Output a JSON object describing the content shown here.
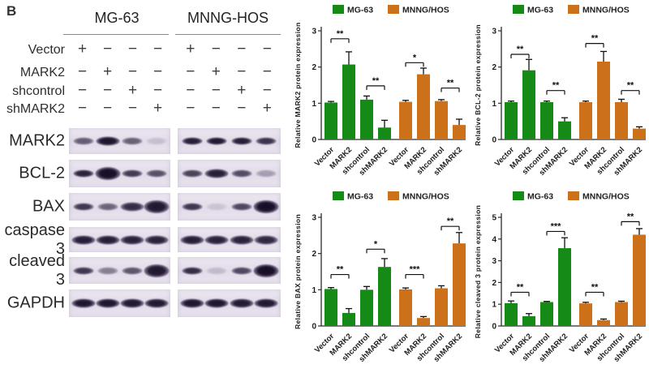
{
  "panel_label": "B",
  "colors": {
    "mg63_green": "#168a16",
    "mnng_orange": "#cd701a",
    "band_dark": "#1d1330",
    "strip_bg": "#e6e0ec",
    "axis": "#2b2b2b"
  },
  "blot_panel": {
    "groups": [
      "MG-63",
      "MNNG-HOS"
    ],
    "conditions": [
      {
        "label": "Vector",
        "mg63": [
          "+",
          "−",
          "−",
          "−"
        ],
        "mnng": [
          "+",
          "−",
          "−",
          "−"
        ]
      },
      {
        "label": "MARK2",
        "mg63": [
          "−",
          "+",
          "−",
          "−"
        ],
        "mnng": [
          "−",
          "+",
          "−",
          "−"
        ]
      },
      {
        "label": "shcontrol",
        "mg63": [
          "−",
          "−",
          "+",
          "−"
        ],
        "mnng": [
          "−",
          "−",
          "+",
          "−"
        ]
      },
      {
        "label": "shMARK2",
        "mg63": [
          "−",
          "−",
          "−",
          "+"
        ],
        "mnng": [
          "−",
          "−",
          "−",
          "+"
        ]
      }
    ],
    "rows": [
      {
        "label": "MARK2",
        "mg63": [
          {
            "i": 0.62,
            "s": "m"
          },
          {
            "i": 0.97,
            "s": "l"
          },
          {
            "i": 0.6,
            "s": "m"
          },
          {
            "i": 0.14,
            "s": "m"
          }
        ],
        "mnng": [
          {
            "i": 0.92,
            "s": "m"
          },
          {
            "i": 0.95,
            "s": "m"
          },
          {
            "i": 0.92,
            "s": "m"
          },
          {
            "i": 0.82,
            "s": "m"
          }
        ]
      },
      {
        "label": "BCL-2",
        "mg63": [
          {
            "i": 0.9,
            "s": "m"
          },
          {
            "i": 1.0,
            "s": "xl"
          },
          {
            "i": 0.78,
            "s": "m"
          },
          {
            "i": 0.68,
            "s": "m"
          }
        ],
        "mnng": [
          {
            "i": 0.75,
            "s": "m"
          },
          {
            "i": 0.92,
            "s": "l"
          },
          {
            "i": 0.7,
            "s": "m"
          },
          {
            "i": 0.3,
            "s": "m"
          }
        ]
      },
      {
        "label": "BAX",
        "mg63": [
          {
            "i": 0.8,
            "s": "m"
          },
          {
            "i": 0.58,
            "s": "m"
          },
          {
            "i": 0.85,
            "s": "l"
          },
          {
            "i": 0.95,
            "s": "xl"
          }
        ],
        "mnng": [
          {
            "i": 0.8,
            "s": "m"
          },
          {
            "i": 0.12,
            "s": "m"
          },
          {
            "i": 0.72,
            "s": "m"
          },
          {
            "i": 1.0,
            "s": "xl"
          }
        ]
      },
      {
        "label": "caspase 3",
        "mg63": [
          {
            "i": 0.92,
            "s": "l"
          },
          {
            "i": 0.92,
            "s": "l"
          },
          {
            "i": 0.9,
            "s": "l"
          },
          {
            "i": 0.9,
            "s": "l"
          }
        ],
        "mnng": [
          {
            "i": 0.92,
            "s": "l"
          },
          {
            "i": 0.9,
            "s": "l"
          },
          {
            "i": 0.9,
            "s": "l"
          },
          {
            "i": 0.88,
            "s": "l"
          }
        ]
      },
      {
        "label": "cleaved 3",
        "mg63": [
          {
            "i": 0.8,
            "s": "m"
          },
          {
            "i": 0.45,
            "s": "m"
          },
          {
            "i": 0.65,
            "s": "m"
          },
          {
            "i": 0.95,
            "s": "xl"
          }
        ],
        "mnng": [
          {
            "i": 0.85,
            "s": "m"
          },
          {
            "i": 0.16,
            "s": "m"
          },
          {
            "i": 0.72,
            "s": "m"
          },
          {
            "i": 1.0,
            "s": "xl"
          }
        ]
      },
      {
        "label": "GAPDH",
        "mg63": [
          {
            "i": 0.96,
            "s": "l"
          },
          {
            "i": 0.96,
            "s": "l"
          },
          {
            "i": 0.95,
            "s": "l"
          },
          {
            "i": 0.95,
            "s": "l"
          }
        ],
        "mnng": [
          {
            "i": 0.96,
            "s": "l"
          },
          {
            "i": 0.96,
            "s": "l"
          },
          {
            "i": 0.94,
            "s": "l"
          },
          {
            "i": 0.95,
            "s": "l"
          }
        ]
      }
    ]
  },
  "chart_data": [
    {
      "type": "bar",
      "title": "",
      "ylabel": "Relative MARK2 protein expression",
      "xlabel": "",
      "ylim": [
        0,
        3
      ],
      "yticks": [
        0,
        1,
        2,
        3
      ],
      "grid": false,
      "legend_position": "top",
      "categories": [
        "Vector",
        "MARK2",
        "shcontrol",
        "shMARK2"
      ],
      "legend": [
        {
          "name": "MG-63",
          "color": "#168a16"
        },
        {
          "name": "MNNG/HOS",
          "color": "#cd701a"
        }
      ],
      "series": [
        {
          "name": "MG-63",
          "color": "#168a16",
          "values": [
            1.02,
            2.07,
            1.1,
            0.33
          ],
          "errors": [
            0.03,
            0.35,
            0.1,
            0.2
          ]
        },
        {
          "name": "MNNG/HOS",
          "color": "#cd701a",
          "values": [
            1.04,
            1.8,
            1.06,
            0.4
          ],
          "errors": [
            0.04,
            0.17,
            0.04,
            0.16
          ]
        }
      ],
      "significance": [
        {
          "series": 0,
          "bars": [
            0,
            1
          ],
          "stars": "**",
          "y": 2.78
        },
        {
          "series": 0,
          "bars": [
            2,
            3
          ],
          "stars": "**",
          "y": 1.48
        },
        {
          "series": 1,
          "bars": [
            0,
            1
          ],
          "stars": "*",
          "y": 2.12
        },
        {
          "series": 1,
          "bars": [
            2,
            3
          ],
          "stars": "**",
          "y": 1.42
        }
      ]
    },
    {
      "type": "bar",
      "title": "",
      "ylabel": "Relative BCL-2 protein expression",
      "xlabel": "",
      "ylim": [
        0,
        3
      ],
      "yticks": [
        0,
        1,
        2,
        3
      ],
      "grid": false,
      "legend_position": "top",
      "categories": [
        "Vector",
        "MARK2",
        "shcontrol",
        "shMARK2"
      ],
      "legend": [
        {
          "name": "MG-63",
          "color": "#168a16"
        },
        {
          "name": "MNNG/HOS",
          "color": "#cd701a"
        }
      ],
      "series": [
        {
          "name": "MG-63",
          "color": "#168a16",
          "values": [
            1.03,
            1.91,
            1.03,
            0.5
          ],
          "errors": [
            0.03,
            0.3,
            0.03,
            0.1
          ]
        },
        {
          "name": "MNNG/HOS",
          "color": "#cd701a",
          "values": [
            1.03,
            2.15,
            1.03,
            0.3
          ],
          "errors": [
            0.03,
            0.28,
            0.08,
            0.05
          ]
        }
      ],
      "significance": [
        {
          "series": 0,
          "bars": [
            0,
            1
          ],
          "stars": "**",
          "y": 2.35
        },
        {
          "series": 0,
          "bars": [
            2,
            3
          ],
          "stars": "**",
          "y": 1.35
        },
        {
          "series": 1,
          "bars": [
            0,
            1
          ],
          "stars": "**",
          "y": 2.65
        },
        {
          "series": 1,
          "bars": [
            2,
            3
          ],
          "stars": "**",
          "y": 1.35
        }
      ]
    },
    {
      "type": "bar",
      "title": "",
      "ylabel": "Relative BAX protein  expression",
      "xlabel": "",
      "ylim": [
        0,
        3
      ],
      "yticks": [
        0,
        1,
        2,
        3
      ],
      "grid": false,
      "legend_position": "top",
      "categories": [
        "Vector",
        "MARK2",
        "shcontrol",
        "shMARK2"
      ],
      "legend": [
        {
          "name": "MG-63",
          "color": "#168a16"
        },
        {
          "name": "MNNG/HOS",
          "color": "#cd701a"
        }
      ],
      "series": [
        {
          "name": "MG-63",
          "color": "#168a16",
          "values": [
            1.02,
            0.36,
            1.0,
            1.63
          ],
          "errors": [
            0.04,
            0.12,
            0.09,
            0.23
          ]
        },
        {
          "name": "MNNG/HOS",
          "color": "#cd701a",
          "values": [
            1.01,
            0.22,
            1.04,
            2.28
          ],
          "errors": [
            0.04,
            0.04,
            0.07,
            0.3
          ]
        }
      ],
      "significance": [
        {
          "series": 0,
          "bars": [
            0,
            1
          ],
          "stars": "**",
          "y": 1.42
        },
        {
          "series": 0,
          "bars": [
            2,
            3
          ],
          "stars": "*",
          "y": 2.12
        },
        {
          "series": 1,
          "bars": [
            0,
            1
          ],
          "stars": "***",
          "y": 1.42
        },
        {
          "series": 1,
          "bars": [
            2,
            3
          ],
          "stars": "**",
          "y": 2.75
        }
      ]
    },
    {
      "type": "bar",
      "title": "",
      "ylabel": "Relative cleaved 3 protein  expression",
      "xlabel": "",
      "ylim": [
        0,
        5
      ],
      "yticks": [
        0,
        1,
        2,
        3,
        4,
        5
      ],
      "grid": false,
      "legend_position": "top",
      "categories": [
        "Vector",
        "MARK2",
        "shcontrol",
        "shMARK2"
      ],
      "legend": [
        {
          "name": "MG-63",
          "color": "#168a16"
        },
        {
          "name": "MNNG/HOS",
          "color": "#cd701a"
        }
      ],
      "series": [
        {
          "name": "MG-63",
          "color": "#168a16",
          "values": [
            1.05,
            0.45,
            1.1,
            3.58
          ],
          "errors": [
            0.1,
            0.12,
            0.03,
            0.48
          ]
        },
        {
          "name": "MNNG/HOS",
          "color": "#cd701a",
          "values": [
            1.04,
            0.27,
            1.1,
            4.2
          ],
          "errors": [
            0.05,
            0.05,
            0.04,
            0.28
          ]
        }
      ],
      "significance": [
        {
          "series": 0,
          "bars": [
            0,
            1
          ],
          "stars": "**",
          "y": 1.55
        },
        {
          "series": 0,
          "bars": [
            2,
            3
          ],
          "stars": "***",
          "y": 4.35
        },
        {
          "series": 1,
          "bars": [
            0,
            1
          ],
          "stars": "**",
          "y": 1.55
        },
        {
          "series": 1,
          "bars": [
            2,
            3
          ],
          "stars": "**",
          "y": 4.8
        }
      ]
    }
  ]
}
